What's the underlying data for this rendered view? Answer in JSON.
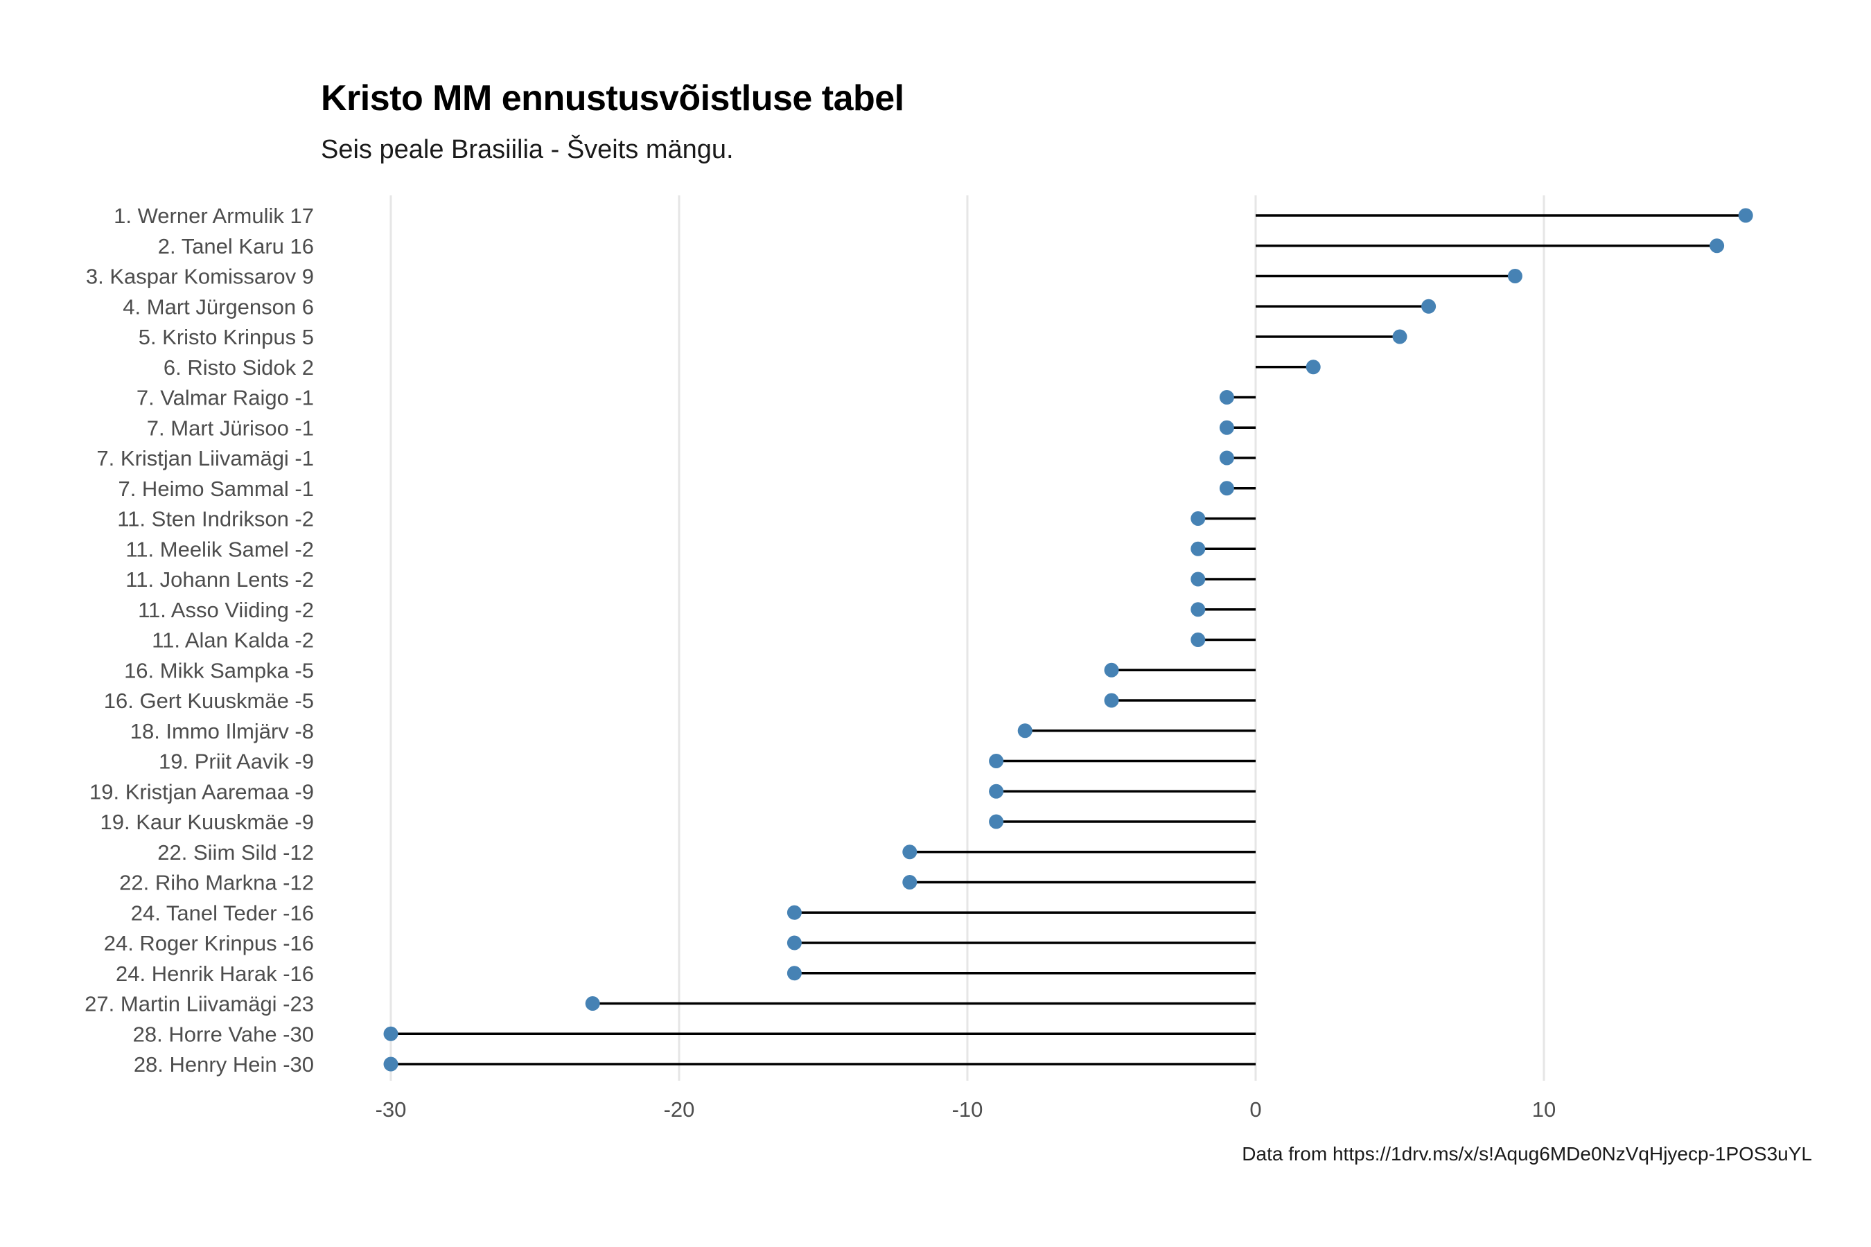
{
  "chart_data": {
    "type": "lollipop",
    "title": "Kristo MM ennustusvõistluse tabel",
    "subtitle": "Seis peale Brasiilia - Šveits mängu.",
    "caption": "Data from https://1drv.ms/x/s!Aqug6MDe0NzVqHjyecp-1POS3uYL",
    "xlabel": "",
    "ylabel": "",
    "xlim": [
      -30,
      17
    ],
    "x_ticks": [
      -30,
      -20,
      -10,
      0,
      10
    ],
    "grid": "vertical major",
    "point_color": "#4682b4",
    "segment_color": "#000000",
    "categories": [
      "1. Werner Armulik 17",
      "2. Tanel Karu 16",
      "3. Kaspar Komissarov 9",
      "4. Mart Jürgenson 6",
      "5. Kristo Krinpus 5",
      "6. Risto Sidok 2",
      "7. Valmar Raigo -1",
      "7. Mart Jürisoo -1",
      "7. Kristjan Liivamägi -1",
      "7. Heimo Sammal -1",
      "11. Sten Indrikson -2",
      "11. Meelik Samel -2",
      "11. Johann Lents -2",
      "11. Asso Viiding -2",
      "11. Alan Kalda -2",
      "16. Mikk Sampka -5",
      "16. Gert Kuuskmäe -5",
      "18. Immo Ilmjärv -8",
      "19. Priit Aavik -9",
      "19. Kristjan Aaremaa -9",
      "19. Kaur Kuuskmäe -9",
      "22. Siim Sild -12",
      "22. Riho Markna -12",
      "24. Tanel Teder -16",
      "24. Roger Krinpus -16",
      "24. Henrik Harak -16",
      "27. Martin Liivamägi -23",
      "28. Horre Vahe -30",
      "28. Henry Hein -30"
    ],
    "values": [
      17,
      16,
      9,
      6,
      5,
      2,
      -1,
      -1,
      -1,
      -1,
      -2,
      -2,
      -2,
      -2,
      -2,
      -5,
      -5,
      -8,
      -9,
      -9,
      -9,
      -12,
      -12,
      -16,
      -16,
      -16,
      -23,
      -30,
      -30
    ]
  }
}
